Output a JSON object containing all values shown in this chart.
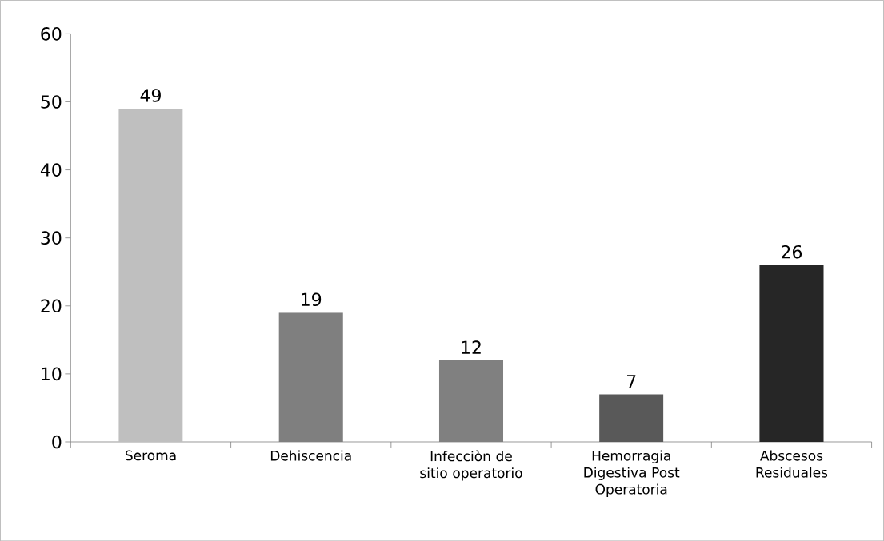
{
  "chart_data": {
    "type": "bar",
    "categories": [
      "Seroma",
      "Dehiscencia",
      "Infecciòn de sitio operatorio",
      "Hemorragia Digestiva Post Operatoria",
      "Abscesos Residuales"
    ],
    "values": [
      49,
      19,
      12,
      7,
      26
    ],
    "colors": [
      "#bfbfbf",
      "#7f7f7f",
      "#808080",
      "#595959",
      "#262626"
    ],
    "ylim": [
      0,
      60
    ],
    "yticks": [
      0,
      10,
      20,
      30,
      40,
      50,
      60
    ],
    "grid": false,
    "data_labels": true
  }
}
